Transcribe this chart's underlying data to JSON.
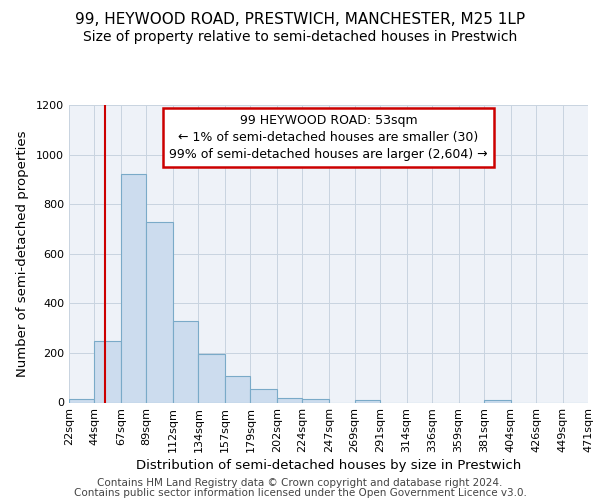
{
  "title": "99, HEYWOOD ROAD, PRESTWICH, MANCHESTER, M25 1LP",
  "subtitle": "Size of property relative to semi-detached houses in Prestwich",
  "xlabel": "Distribution of semi-detached houses by size in Prestwich",
  "ylabel": "Number of semi-detached properties",
  "bar_edges": [
    22,
    44,
    67,
    89,
    112,
    134,
    157,
    179,
    202,
    224,
    247,
    269,
    291,
    314,
    336,
    359,
    381,
    404,
    426,
    449,
    471
  ],
  "bar_heights": [
    15,
    250,
    920,
    730,
    330,
    195,
    105,
    55,
    20,
    15,
    0,
    10,
    0,
    0,
    0,
    0,
    10,
    0,
    0,
    0,
    0
  ],
  "bar_color": "#ccdcee",
  "bar_edge_color": "#7aaac8",
  "grid_color": "#c8d4e0",
  "background_color": "#ffffff",
  "axes_bg_color": "#eef2f8",
  "red_line_x": 53,
  "red_line_color": "#cc0000",
  "annotation_text": "99 HEYWOOD ROAD: 53sqm\n← 1% of semi-detached houses are smaller (30)\n99% of semi-detached houses are larger (2,604) →",
  "annotation_box_color": "#ffffff",
  "annotation_box_edge": "#cc0000",
  "ylim": [
    0,
    1200
  ],
  "yticks": [
    0,
    200,
    400,
    600,
    800,
    1000,
    1200
  ],
  "tick_labels": [
    "22sqm",
    "44sqm",
    "67sqm",
    "89sqm",
    "112sqm",
    "134sqm",
    "157sqm",
    "179sqm",
    "202sqm",
    "224sqm",
    "247sqm",
    "269sqm",
    "291sqm",
    "314sqm",
    "336sqm",
    "359sqm",
    "381sqm",
    "404sqm",
    "426sqm",
    "449sqm",
    "471sqm"
  ],
  "footer_line1": "Contains HM Land Registry data © Crown copyright and database right 2024.",
  "footer_line2": "Contains public sector information licensed under the Open Government Licence v3.0.",
  "title_fontsize": 11,
  "subtitle_fontsize": 10,
  "axis_label_fontsize": 9.5,
  "tick_fontsize": 8,
  "annotation_fontsize": 9,
  "footer_fontsize": 7.5
}
